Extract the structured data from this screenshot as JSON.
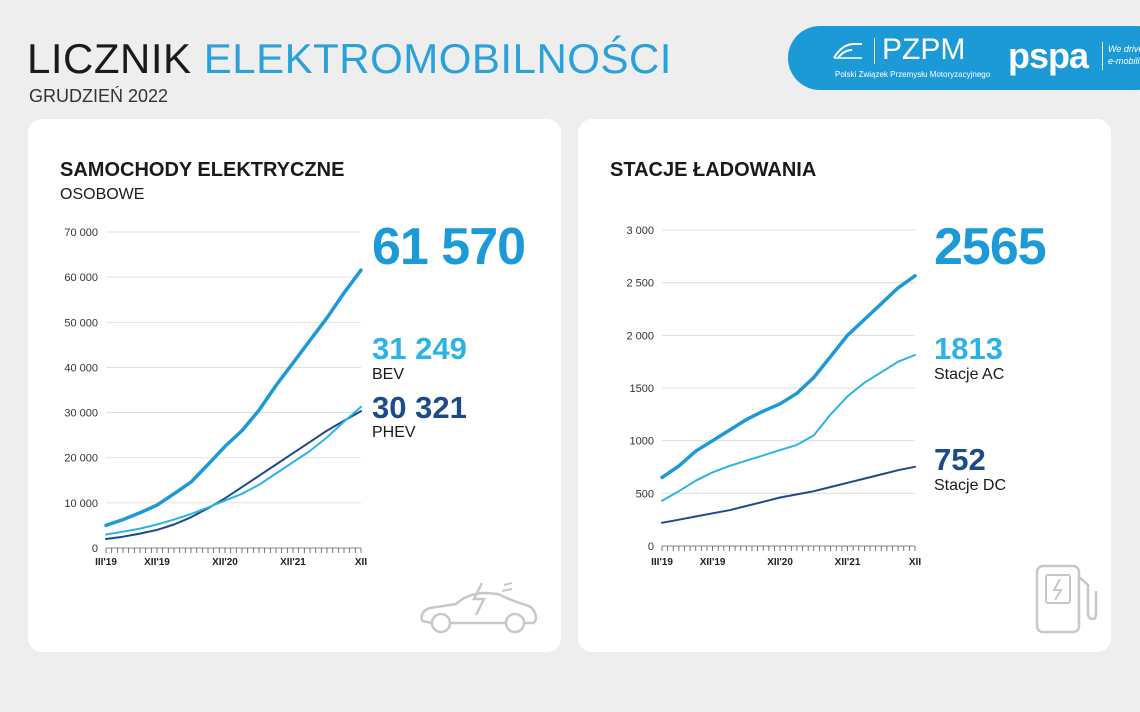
{
  "header": {
    "title_part1": "LICZNIK",
    "title_part2": "ELEKTROMOBILNOŚCI",
    "subtitle": "GRUDZIEŃ 2022"
  },
  "logos": {
    "pzpm_name": "PZPM",
    "pzpm_full": "Polski Związek Przemysłu Motoryzacyjnego",
    "pspa_name": "pspa",
    "pspa_tag_line1": "We drive",
    "pspa_tag_line2": "e-mobility"
  },
  "colors": {
    "accent_blue": "#1c9ad8",
    "light_blue": "#2bb3e6",
    "dark_blue": "#1d4a88",
    "icon_grey": "#c8c8c8"
  },
  "cars": {
    "title": "SAMOCHODY ELEKTRYCZNE",
    "subtitle": "OSOBOWE",
    "total": "61 570",
    "bev_value": "31 249",
    "bev_label": "BEV",
    "phev_value": "30 321",
    "phev_label": "PHEV"
  },
  "stations": {
    "title": "STACJE ŁADOWANIA",
    "total": "2565",
    "ac_value": "1813",
    "ac_label": "Stacje AC",
    "dc_value": "752",
    "dc_label": "Stacje DC"
  },
  "chart_data": [
    {
      "type": "line",
      "title": "SAMOCHODY ELEKTRYCZNE",
      "ylim": [
        0,
        70000
      ],
      "y_ticks": [
        0,
        10000,
        20000,
        30000,
        40000,
        50000,
        60000,
        70000
      ],
      "y_tick_labels": [
        "0",
        "10 000",
        "20 000",
        "30 000",
        "40 000",
        "50 000",
        "60 000",
        "70 000"
      ],
      "x_tick_labels": [
        "III'19",
        "XII'19",
        "XII'20",
        "XII'21",
        "XII"
      ],
      "x_tick_months": [
        0,
        9,
        21,
        33,
        45
      ],
      "grid": true,
      "series": [
        {
          "color": "#1c9ad8",
          "x": [
            0,
            3,
            6,
            9,
            12,
            15,
            18,
            21,
            24,
            27,
            30,
            33,
            36,
            39,
            42,
            45
          ],
          "y": [
            5000,
            6300,
            7800,
            9500,
            12000,
            14600,
            18500,
            22500,
            26000,
            30500,
            36000,
            41000,
            46000,
            51000,
            56500,
            61570
          ]
        },
        {
          "name": "BEV",
          "color": "#2bb3e6",
          "x": [
            0,
            3,
            6,
            9,
            12,
            15,
            18,
            21,
            24,
            27,
            30,
            33,
            36,
            39,
            42,
            45
          ],
          "y": [
            3000,
            3600,
            4300,
            5200,
            6300,
            7500,
            9000,
            10500,
            12000,
            14000,
            16500,
            19000,
            21500,
            24500,
            28000,
            31249
          ]
        },
        {
          "name": "PHEV",
          "color": "#1d4a88",
          "x": [
            0,
            3,
            6,
            9,
            12,
            15,
            18,
            21,
            24,
            27,
            30,
            33,
            36,
            39,
            42,
            45
          ],
          "y": [
            2000,
            2500,
            3200,
            4000,
            5200,
            6800,
            8800,
            11000,
            13500,
            16000,
            18500,
            21000,
            23500,
            26000,
            28200,
            30321
          ]
        }
      ]
    },
    {
      "type": "line",
      "title": "STACJE ŁADOWANIA",
      "ylim": [
        0,
        3000
      ],
      "y_ticks": [
        0,
        500,
        1000,
        1500,
        2000,
        2500,
        3000
      ],
      "y_tick_labels": [
        "0",
        "500",
        "1000",
        "1500",
        "2 000",
        "2 500",
        "3 000"
      ],
      "x_tick_labels": [
        "III'19",
        "XII'19",
        "XII'20",
        "XII'21",
        "XII"
      ],
      "x_tick_months": [
        0,
        9,
        21,
        33,
        45
      ],
      "grid": true,
      "series": [
        {
          "color": "#1c9ad8",
          "x": [
            0,
            3,
            6,
            9,
            12,
            15,
            18,
            21,
            24,
            27,
            30,
            33,
            36,
            39,
            42,
            45
          ],
          "y": [
            650,
            760,
            900,
            1000,
            1100,
            1200,
            1280,
            1350,
            1450,
            1600,
            1800,
            2000,
            2150,
            2300,
            2450,
            2565
          ]
        },
        {
          "name": "Stacje AC",
          "color": "#2bb3e6",
          "x": [
            0,
            3,
            6,
            9,
            12,
            15,
            18,
            21,
            24,
            27,
            30,
            33,
            36,
            39,
            42,
            45
          ],
          "y": [
            430,
            520,
            620,
            700,
            760,
            810,
            860,
            910,
            960,
            1050,
            1250,
            1420,
            1550,
            1650,
            1750,
            1813
          ]
        },
        {
          "name": "Stacje DC",
          "color": "#1d4a88",
          "x": [
            0,
            3,
            6,
            9,
            12,
            15,
            18,
            21,
            24,
            27,
            30,
            33,
            36,
            39,
            42,
            45
          ],
          "y": [
            220,
            250,
            280,
            310,
            340,
            380,
            420,
            460,
            490,
            520,
            560,
            600,
            640,
            680,
            720,
            752
          ]
        }
      ]
    }
  ]
}
